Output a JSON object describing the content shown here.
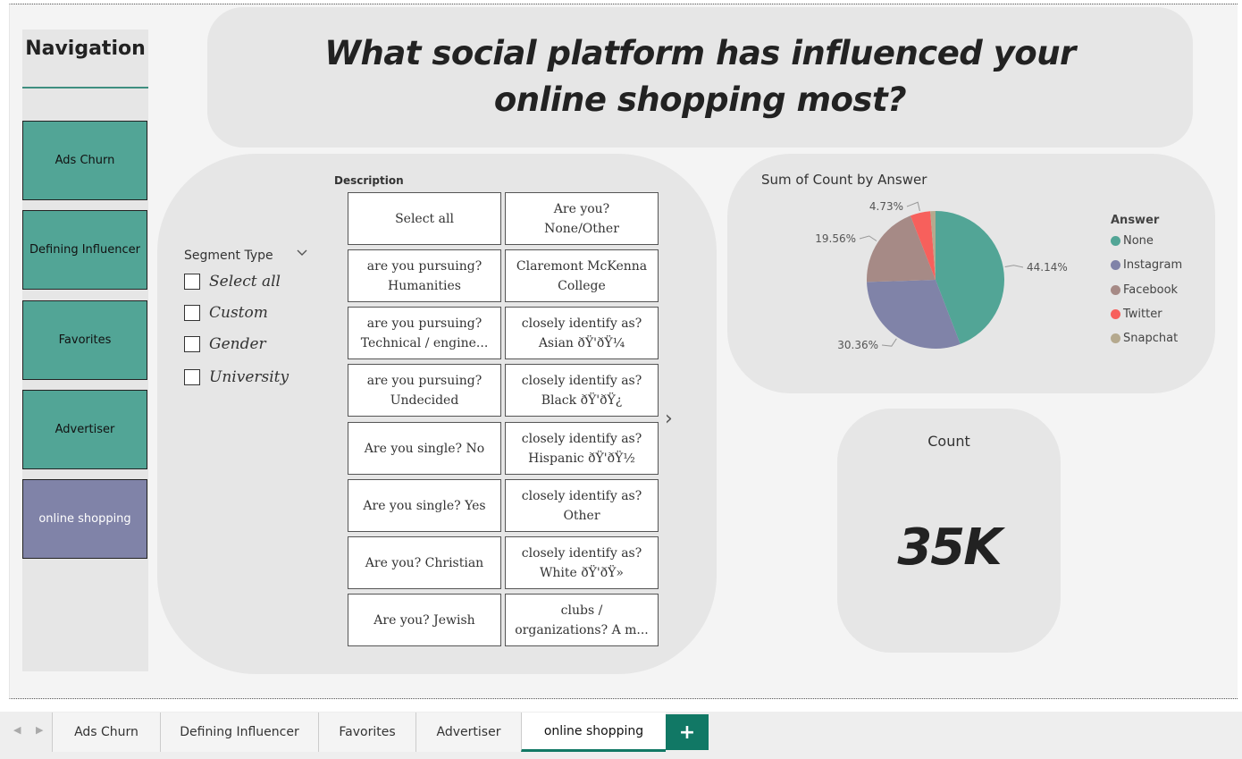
{
  "navigation": {
    "title": "Navigation",
    "buttons": [
      {
        "label": "Ads Churn"
      },
      {
        "label": "Defining Influencer"
      },
      {
        "label": "Favorites"
      },
      {
        "label": "Advertiser"
      },
      {
        "label": "online shopping"
      }
    ]
  },
  "header": {
    "title": "What social platform has influenced your online shopping most?"
  },
  "slicer_segment": {
    "label": "Segment Type",
    "options": [
      {
        "label": "Select all"
      },
      {
        "label": "Custom"
      },
      {
        "label": "Gender"
      },
      {
        "label": "University"
      }
    ]
  },
  "slicer_description": {
    "label": "Description",
    "tiles": [
      {
        "line1": "Select all",
        "line2": ""
      },
      {
        "line1": "Are you?",
        "line2": "None/Other"
      },
      {
        "line1": "are you pursuing?",
        "line2": "Humanities"
      },
      {
        "line1": "Claremont McKenna",
        "line2": "College"
      },
      {
        "line1": "are you pursuing?",
        "line2": "Technical / engine..."
      },
      {
        "line1": "closely identify as?",
        "line2": "Asian ðŸ'ðŸ¼"
      },
      {
        "line1": "are you pursuing?",
        "line2": "Undecided"
      },
      {
        "line1": "closely identify as?",
        "line2": "Black ðŸ'ðŸ¿"
      },
      {
        "line1": "Are you single? No",
        "line2": ""
      },
      {
        "line1": "closely identify as?",
        "line2": "Hispanic ðŸ'ðŸ½"
      },
      {
        "line1": "Are you single? Yes",
        "line2": ""
      },
      {
        "line1": "closely identify as?",
        "line2": "Other"
      },
      {
        "line1": "Are you? Christian",
        "line2": ""
      },
      {
        "line1": "closely identify as?",
        "line2": "White ðŸ'ðŸ»"
      },
      {
        "line1": "Are you? Jewish",
        "line2": ""
      },
      {
        "line1": "clubs /",
        "line2": "organizations? A m..."
      }
    ],
    "next_arrow": "›"
  },
  "chart_data": {
    "type": "pie",
    "title": "Sum of Count by Answer",
    "legend_title": "Answer",
    "legend_position": "right",
    "slices": [
      {
        "name": "None",
        "value": 44.14,
        "label": "44.14%",
        "color": "#52a596"
      },
      {
        "name": "Instagram",
        "value": 30.36,
        "label": "30.36%",
        "color": "#8083a8"
      },
      {
        "name": "Facebook",
        "value": 19.56,
        "label": "19.56%",
        "color": "#a68a86"
      },
      {
        "name": "Twitter",
        "value": 4.73,
        "label": "4.73%",
        "color": "#f7605c"
      },
      {
        "name": "Snapchat",
        "value": 1.21,
        "label": "",
        "color": "#b5a98e"
      }
    ]
  },
  "card": {
    "label": "Count",
    "value": "35K"
  },
  "tabs": {
    "items": [
      {
        "label": "Ads Churn"
      },
      {
        "label": "Defining Influencer"
      },
      {
        "label": "Favorites"
      },
      {
        "label": "Advertiser"
      },
      {
        "label": "online shopping"
      }
    ],
    "add_label": "+",
    "scroll_left": "◀",
    "scroll_right": "▶"
  }
}
